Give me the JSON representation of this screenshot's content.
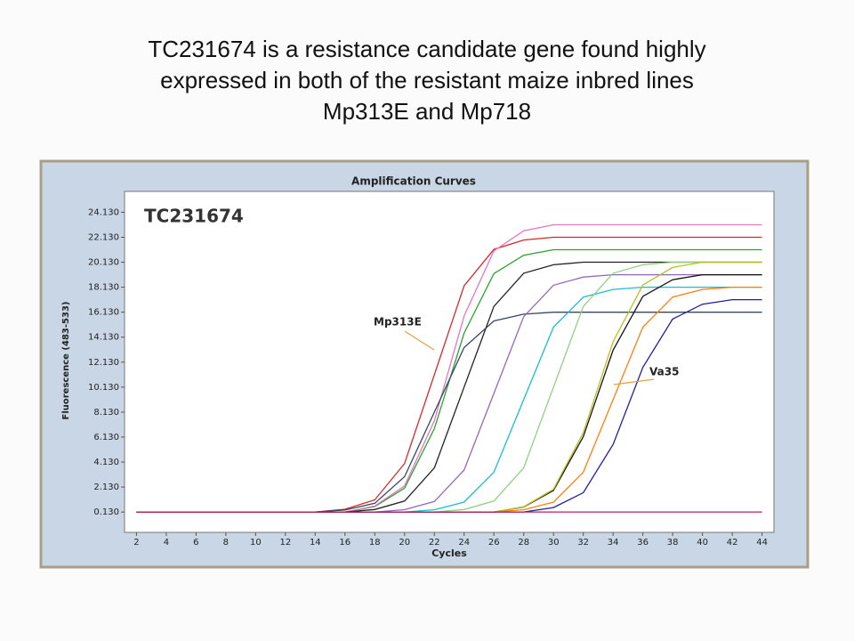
{
  "heading": {
    "lines": [
      "TC231674 is a resistance candidate gene found highly",
      "expressed in both of the resistant maize inbred lines",
      "Mp313E and Mp718"
    ]
  },
  "chart_data": {
    "type": "line",
    "title": "Amplification Curves",
    "label": "TC231674",
    "xlabel": "Cycles",
    "ylabel": "Fluorescence (483-533)",
    "annotations": [
      "Mp313E",
      "Va35"
    ],
    "x": [
      2,
      4,
      6,
      8,
      10,
      12,
      14,
      16,
      18,
      20,
      22,
      24,
      26,
      28,
      30,
      32,
      34,
      36,
      38,
      40,
      42,
      44
    ],
    "xlim": [
      1.2,
      44.8
    ],
    "ylim": [
      -1.5,
      25.8
    ],
    "xticks": [
      2,
      4,
      6,
      8,
      10,
      12,
      14,
      16,
      18,
      20,
      22,
      24,
      26,
      28,
      30,
      32,
      34,
      36,
      38,
      40,
      42,
      44
    ],
    "yticks": [
      {
        "value": 0.13,
        "label": "0.130"
      },
      {
        "value": 2.13,
        "label": "2.130"
      },
      {
        "value": 4.13,
        "label": "4.130"
      },
      {
        "value": 6.13,
        "label": "6.130"
      },
      {
        "value": 8.13,
        "label": "8.130"
      },
      {
        "value": 10.13,
        "label": "10.130"
      },
      {
        "value": 12.13,
        "label": "12.130"
      },
      {
        "value": 14.13,
        "label": "14.130"
      },
      {
        "value": 16.13,
        "label": "16.130"
      },
      {
        "value": 18.13,
        "label": "18.130"
      },
      {
        "value": 20.13,
        "label": "20.130"
      },
      {
        "value": 22.13,
        "label": "22.130"
      },
      {
        "value": 24.13,
        "label": "24.130"
      }
    ],
    "series": [
      {
        "color": "#d62728",
        "values": [
          0.13,
          0.13,
          0.13,
          0.13,
          0.13,
          0.13,
          0.13,
          0.35,
          1.1,
          4.02,
          11.13,
          18.24,
          21.16,
          21.91,
          22.13,
          22.13,
          22.13,
          22.13,
          22.13,
          22.13,
          22.13,
          22.13
        ]
      },
      {
        "color": "#2ca02c",
        "values": [
          0.13,
          0.13,
          0.13,
          0.13,
          0.13,
          0.13,
          0.13,
          0.13,
          0.57,
          2.04,
          6.81,
          14.45,
          19.22,
          20.69,
          21.13,
          21.13,
          21.13,
          21.13,
          21.13,
          21.13,
          21.13,
          21.13
        ]
      },
      {
        "color": "#e377c2",
        "values": [
          0.13,
          0.13,
          0.13,
          0.13,
          0.13,
          0.13,
          0.13,
          0.13,
          0.61,
          2.22,
          7.44,
          15.82,
          21.04,
          22.65,
          23.13,
          23.13,
          23.13,
          23.13,
          23.13,
          23.13,
          23.13,
          23.13
        ]
      },
      {
        "color": "#222222",
        "values": [
          0.13,
          0.13,
          0.13,
          0.13,
          0.13,
          0.13,
          0.13,
          0.13,
          0.33,
          1.01,
          3.67,
          10.13,
          16.59,
          19.25,
          19.93,
          20.13,
          20.13,
          20.13,
          20.13,
          20.13,
          20.13,
          20.13
        ]
      },
      {
        "color": "#34495e",
        "values": [
          0.13,
          0.13,
          0.13,
          0.13,
          0.13,
          0.13,
          0.13,
          0.29,
          0.83,
          2.96,
          8.13,
          13.3,
          15.43,
          15.97,
          16.13,
          16.13,
          16.13,
          16.13,
          16.13,
          16.13,
          16.13,
          16.13
        ]
      },
      {
        "color": "#9467bd",
        "values": [
          0.13,
          0.13,
          0.13,
          0.13,
          0.13,
          0.13,
          0.13,
          0.13,
          0.13,
          0.32,
          0.97,
          3.49,
          9.63,
          15.77,
          18.29,
          18.94,
          19.13,
          19.13,
          19.13,
          19.13,
          19.13,
          19.13
        ]
      },
      {
        "color": "#17becf",
        "values": [
          0.13,
          0.13,
          0.13,
          0.13,
          0.13,
          0.13,
          0.13,
          0.13,
          0.13,
          0.13,
          0.31,
          0.92,
          3.32,
          9.13,
          14.94,
          17.34,
          17.95,
          18.13,
          18.13,
          18.13,
          18.13,
          18.13
        ]
      },
      {
        "color": "#8fd17f",
        "values": [
          0.13,
          0.13,
          0.13,
          0.13,
          0.13,
          0.13,
          0.13,
          0.13,
          0.13,
          0.13,
          0.13,
          0.33,
          1.01,
          3.67,
          10.13,
          16.59,
          19.25,
          19.93,
          20.13,
          20.13,
          20.13,
          20.13
        ]
      },
      {
        "color": "#111111",
        "values": [
          0.13,
          0.13,
          0.13,
          0.13,
          0.13,
          0.13,
          0.13,
          0.13,
          0.13,
          0.13,
          0.13,
          0.13,
          0.13,
          0.53,
          1.86,
          6.17,
          13.09,
          17.4,
          18.73,
          19.13,
          19.13,
          19.13
        ]
      },
      {
        "color": "#bcbd22",
        "values": [
          0.13,
          0.13,
          0.13,
          0.13,
          0.13,
          0.13,
          0.13,
          0.13,
          0.13,
          0.13,
          0.13,
          0.13,
          0.13,
          0.55,
          1.95,
          6.49,
          13.77,
          18.31,
          19.71,
          20.13,
          20.13,
          20.13
        ]
      },
      {
        "color": "#ff7f0e",
        "values": [
          0.13,
          0.13,
          0.13,
          0.13,
          0.13,
          0.13,
          0.13,
          0.13,
          0.13,
          0.13,
          0.13,
          0.13,
          0.13,
          0.31,
          0.92,
          3.32,
          9.13,
          14.94,
          17.34,
          17.95,
          18.13,
          18.13
        ]
      },
      {
        "color": "#1f1f9f",
        "values": [
          0.13,
          0.13,
          0.13,
          0.13,
          0.13,
          0.13,
          0.13,
          0.13,
          0.13,
          0.13,
          0.13,
          0.13,
          0.13,
          0.13,
          0.49,
          1.68,
          5.54,
          11.72,
          15.58,
          16.77,
          17.13,
          17.13
        ]
      },
      {
        "color": "#c2185b",
        "values": [
          0.13,
          0.13,
          0.13,
          0.13,
          0.13,
          0.13,
          0.13,
          0.13,
          0.13,
          0.13,
          0.13,
          0.13,
          0.13,
          0.13,
          0.13,
          0.13,
          0.13,
          0.13,
          0.13,
          0.13,
          0.13,
          0.13
        ]
      }
    ]
  }
}
